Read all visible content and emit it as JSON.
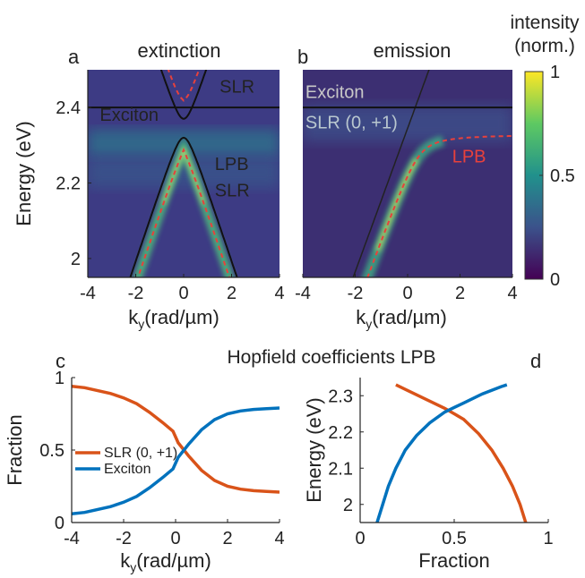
{
  "figure": {
    "panel_letters": [
      "a",
      "b",
      "c",
      "d"
    ],
    "group_title_cd": "Hopfield coefficients LPB"
  },
  "colorbar": {
    "title_line1": "intensity",
    "title_line2": "(norm.)",
    "ticks": [
      {
        "value": 0,
        "label": "0"
      },
      {
        "value": 0.5,
        "label": "0.5"
      },
      {
        "value": 1,
        "label": "1"
      }
    ],
    "colormap": [
      "#440154",
      "#3b528b",
      "#21918c",
      "#5ec962",
      "#fde725"
    ]
  },
  "colors": {
    "slr": "#d95319",
    "exciton": "#0072bd",
    "dashed_lpb": "#e8413c",
    "black_line": "#111111"
  },
  "chart_data": [
    {
      "panel": "a",
      "type": "heatmap",
      "title": "extinction",
      "xlabel": "k_y(rad/µm)",
      "ylabel": "Energy (eV)",
      "xlim": [
        -4,
        4
      ],
      "ylim": [
        1.95,
        2.5
      ],
      "xticks": [
        -4,
        -2,
        0,
        2,
        4
      ],
      "yticks": [
        2,
        2.2,
        2.4
      ],
      "lines": {
        "exciton_energy": 2.4,
        "slr_lower": {
          "apex_k": 0,
          "apex_energy": 2.32,
          "slope": 0.19
        },
        "slr_upper": {
          "min_energy": 2.37,
          "slope": 0.19
        },
        "lpb_dashed": {
          "apex_energy": 2.205,
          "asymptote": 2.335
        },
        "upper_dashed": {
          "min_energy": 2.41,
          "asymptote": 2.42
        }
      },
      "annotations": [
        {
          "text": "SLR",
          "x": 1.5,
          "y": 2.44,
          "color": "#111111"
        },
        {
          "text": "Exciton",
          "x": -3.5,
          "y": 2.365,
          "color": "#111111"
        },
        {
          "text": "LPB",
          "x": 1.3,
          "y": 2.235,
          "color": "#e8413c"
        },
        {
          "text": "SLR",
          "x": 1.3,
          "y": 2.165,
          "color": "#111111"
        }
      ]
    },
    {
      "panel": "b",
      "type": "heatmap",
      "title": "emission",
      "xlabel": "k_y(rad/µm)",
      "xlim": [
        -4,
        4
      ],
      "ylim": [
        1.95,
        2.5
      ],
      "xticks": [
        -4,
        -2,
        0,
        2,
        4
      ],
      "annotations": [
        {
          "text": "Exciton",
          "x": -3.9,
          "y": 2.425,
          "color": "#c8c8c8"
        },
        {
          "text": "SLR (0, +1)",
          "x": -3.9,
          "y": 2.345,
          "color": "#b9c7cf"
        },
        {
          "text": "LPB",
          "x": 1.7,
          "y": 2.255,
          "color": "#e8413c"
        }
      ]
    },
    {
      "panel": "c",
      "type": "line",
      "xlabel": "k_y(rad/µm)",
      "ylabel": "Fraction",
      "xlim": [
        -4,
        4
      ],
      "ylim": [
        0,
        1
      ],
      "xticks": [
        -4,
        -2,
        0,
        2,
        4
      ],
      "yticks": [
        0,
        0.5,
        1
      ],
      "x": [
        -4,
        -3.5,
        -3,
        -2.5,
        -2,
        -1.5,
        -1,
        -0.5,
        -0.1,
        0,
        0.1,
        0.5,
        1,
        1.5,
        2,
        2.5,
        3,
        3.5,
        4
      ],
      "series": [
        {
          "name": "SLR (0, +1)",
          "color": "#d95319",
          "values": [
            0.94,
            0.93,
            0.91,
            0.89,
            0.86,
            0.82,
            0.76,
            0.69,
            0.63,
            0.59,
            0.55,
            0.46,
            0.36,
            0.29,
            0.25,
            0.23,
            0.22,
            0.215,
            0.21
          ]
        },
        {
          "name": "Exciton",
          "color": "#0072bd",
          "values": [
            0.06,
            0.07,
            0.09,
            0.11,
            0.14,
            0.18,
            0.24,
            0.31,
            0.37,
            0.41,
            0.45,
            0.54,
            0.64,
            0.71,
            0.75,
            0.77,
            0.78,
            0.785,
            0.79
          ]
        }
      ],
      "legend": "left"
    },
    {
      "panel": "d",
      "type": "line",
      "xlabel": "Fraction",
      "ylabel": "Energy (eV)",
      "xlim": [
        0,
        1
      ],
      "ylim": [
        1.95,
        2.35
      ],
      "xticks": [
        0,
        0.5,
        1
      ],
      "yticks": [
        2,
        2.1,
        2.2,
        2.3
      ],
      "series": [
        {
          "name": "SLR (0, +1)",
          "color": "#d95319",
          "x": [
            0.19,
            0.25,
            0.35,
            0.45,
            0.55,
            0.63,
            0.7,
            0.76,
            0.81,
            0.85,
            0.88
          ],
          "y": [
            2.33,
            2.315,
            2.29,
            2.265,
            2.235,
            2.195,
            2.15,
            2.1,
            2.05,
            2.0,
            1.95
          ]
        },
        {
          "name": "Exciton",
          "color": "#0072bd",
          "x": [
            0.09,
            0.12,
            0.15,
            0.19,
            0.24,
            0.3,
            0.37,
            0.45,
            0.55,
            0.65,
            0.75,
            0.78
          ],
          "y": [
            1.95,
            2.0,
            2.05,
            2.1,
            2.15,
            2.19,
            2.225,
            2.255,
            2.28,
            2.305,
            2.325,
            2.33
          ]
        }
      ]
    }
  ]
}
